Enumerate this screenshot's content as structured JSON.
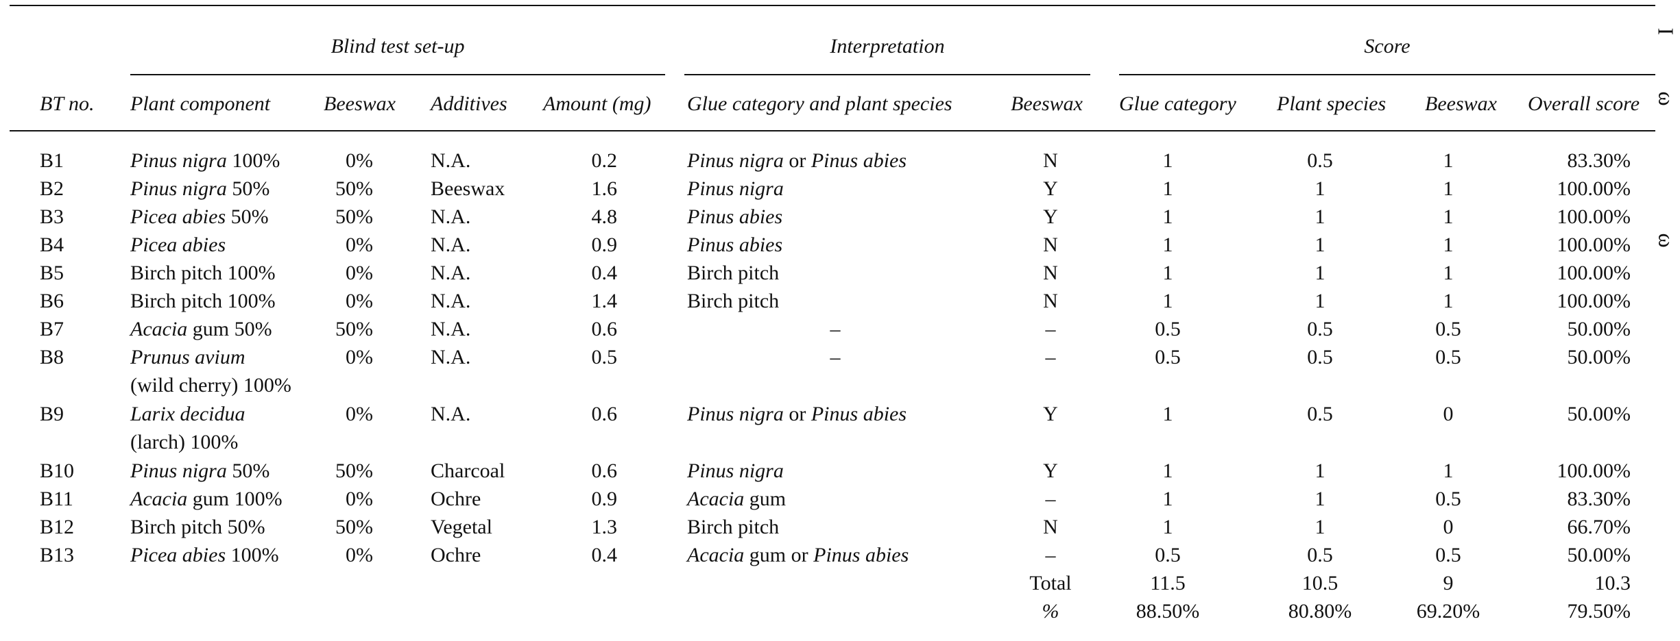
{
  "table": {
    "group_headers": {
      "setup": "Blind test set-up",
      "interpretation": "Interpretation",
      "score": "Score"
    },
    "column_headers": {
      "bt_no": "BT no.",
      "plant_component": "Plant component",
      "beeswax_setup": "Beeswax",
      "additives": "Additives",
      "amount": "Amount (mg)",
      "glue_category_species": "Glue category and plant species",
      "beeswax_interp": "Beeswax",
      "glue_category": "Glue category",
      "plant_species": "Plant species",
      "beeswax_score": "Beeswax",
      "overall": "Overall score"
    },
    "rows": [
      {
        "bt": "B1",
        "plant": [
          [
            "Pinus nigra",
            true
          ],
          [
            " 100%",
            false
          ]
        ],
        "plant2": null,
        "beeswax": "0%",
        "additives": "N.A.",
        "amount": "0.2",
        "interp": [
          [
            "Pinus nigra",
            true
          ],
          [
            " or ",
            false
          ],
          [
            "Pinus abies",
            true
          ]
        ],
        "interp_beeswax": "N",
        "glue_cat": "1",
        "plant_species": "0.5",
        "beeswax_score": "1",
        "overall": "83.30%"
      },
      {
        "bt": "B2",
        "plant": [
          [
            "Pinus nigra",
            true
          ],
          [
            " 50%",
            false
          ]
        ],
        "plant2": null,
        "beeswax": "50%",
        "additives": "Beeswax",
        "amount": "1.6",
        "interp": [
          [
            "Pinus nigra",
            true
          ]
        ],
        "interp_beeswax": "Y",
        "glue_cat": "1",
        "plant_species": "1",
        "beeswax_score": "1",
        "overall": "100.00%"
      },
      {
        "bt": "B3",
        "plant": [
          [
            "Picea abies",
            true
          ],
          [
            " 50%",
            false
          ]
        ],
        "plant2": null,
        "beeswax": "50%",
        "additives": "N.A.",
        "amount": "4.8",
        "interp": [
          [
            "Pinus abies",
            true
          ]
        ],
        "interp_beeswax": "Y",
        "glue_cat": "1",
        "plant_species": "1",
        "beeswax_score": "1",
        "overall": "100.00%"
      },
      {
        "bt": "B4",
        "plant": [
          [
            "Picea abies",
            true
          ]
        ],
        "plant2": null,
        "beeswax": "0%",
        "additives": "N.A.",
        "amount": "0.9",
        "interp": [
          [
            "Pinus abies",
            true
          ]
        ],
        "interp_beeswax": "N",
        "glue_cat": "1",
        "plant_species": "1",
        "beeswax_score": "1",
        "overall": "100.00%"
      },
      {
        "bt": "B5",
        "plant": [
          [
            "Birch pitch 100%",
            false
          ]
        ],
        "plant2": null,
        "beeswax": "0%",
        "additives": "N.A.",
        "amount": "0.4",
        "interp": [
          [
            "Birch pitch",
            false
          ]
        ],
        "interp_beeswax": "N",
        "glue_cat": "1",
        "plant_species": "1",
        "beeswax_score": "1",
        "overall": "100.00%"
      },
      {
        "bt": "B6",
        "plant": [
          [
            "Birch pitch 100%",
            false
          ]
        ],
        "plant2": null,
        "beeswax": "0%",
        "additives": "N.A.",
        "amount": "1.4",
        "interp": [
          [
            "Birch pitch",
            false
          ]
        ],
        "interp_beeswax": "N",
        "glue_cat": "1",
        "plant_species": "1",
        "beeswax_score": "1",
        "overall": "100.00%"
      },
      {
        "bt": "B7",
        "plant": [
          [
            "Acacia",
            true
          ],
          [
            " gum 50%",
            false
          ]
        ],
        "plant2": null,
        "beeswax": "50%",
        "additives": "N.A.",
        "amount": "0.6",
        "interp": [
          [
            "–",
            false
          ]
        ],
        "interp_center": true,
        "interp_beeswax": "–",
        "glue_cat": "0.5",
        "plant_species": "0.5",
        "beeswax_score": "0.5",
        "overall": "50.00%"
      },
      {
        "bt": "B8",
        "plant": [
          [
            "Prunus avium",
            true
          ]
        ],
        "plant2": "(wild cherry) 100%",
        "beeswax": "0%",
        "additives": "N.A.",
        "amount": "0.5",
        "interp": [
          [
            "–",
            false
          ]
        ],
        "interp_center": true,
        "interp_beeswax": "–",
        "glue_cat": "0.5",
        "plant_species": "0.5",
        "beeswax_score": "0.5",
        "overall": "50.00%"
      },
      {
        "bt": "B9",
        "plant": [
          [
            "Larix decidua",
            true
          ]
        ],
        "plant2": "(larch) 100%",
        "beeswax": "0%",
        "additives": "N.A.",
        "amount": "0.6",
        "interp": [
          [
            "Pinus nigra",
            true
          ],
          [
            " or ",
            false
          ],
          [
            "Pinus abies",
            true
          ]
        ],
        "interp_beeswax": "Y",
        "glue_cat": "1",
        "plant_species": "0.5",
        "beeswax_score": "0",
        "overall": "50.00%"
      },
      {
        "bt": "B10",
        "plant": [
          [
            "Pinus nigra",
            true
          ],
          [
            " 50%",
            false
          ]
        ],
        "plant2": null,
        "beeswax": "50%",
        "additives": "Charcoal",
        "amount": "0.6",
        "interp": [
          [
            "Pinus nigra",
            true
          ]
        ],
        "interp_beeswax": "Y",
        "glue_cat": "1",
        "plant_species": "1",
        "beeswax_score": "1",
        "overall": "100.00%"
      },
      {
        "bt": "B11",
        "plant": [
          [
            "Acacia",
            true
          ],
          [
            " gum 100%",
            false
          ]
        ],
        "plant2": null,
        "beeswax": "0%",
        "additives": "Ochre",
        "amount": "0.9",
        "interp": [
          [
            "Acacia",
            true
          ],
          [
            " gum",
            false
          ]
        ],
        "interp_beeswax": "–",
        "glue_cat": "1",
        "plant_species": "1",
        "beeswax_score": "0.5",
        "overall": "83.30%"
      },
      {
        "bt": "B12",
        "plant": [
          [
            "Birch pitch 50%",
            false
          ]
        ],
        "plant2": null,
        "beeswax": "50%",
        "additives": "Vegetal",
        "amount": "1.3",
        "interp": [
          [
            "Birch pitch",
            false
          ]
        ],
        "interp_beeswax": "N",
        "glue_cat": "1",
        "plant_species": "1",
        "beeswax_score": "0",
        "overall": "66.70%"
      },
      {
        "bt": "B13",
        "plant": [
          [
            "Picea abies",
            true
          ],
          [
            " 100%",
            false
          ]
        ],
        "plant2": null,
        "beeswax": "0%",
        "additives": "Ochre",
        "amount": "0.4",
        "interp": [
          [
            "Acacia",
            true
          ],
          [
            " gum or ",
            false
          ],
          [
            "Pinus abies",
            true
          ]
        ],
        "interp_beeswax": "–",
        "glue_cat": "0.5",
        "plant_species": "0.5",
        "beeswax_score": "0.5",
        "overall": "50.00%"
      }
    ],
    "totals": [
      {
        "label": "Total",
        "glue_cat": "11.5",
        "plant_species": "10.5",
        "beeswax_score": "9",
        "overall": "10.3"
      },
      {
        "label": "%",
        "glue_cat": "88.50%",
        "plant_species": "80.80%",
        "beeswax_score": "69.20%",
        "overall": "79.50%"
      }
    ]
  },
  "margin_marks": [
    "I",
    "ω",
    "ω"
  ]
}
